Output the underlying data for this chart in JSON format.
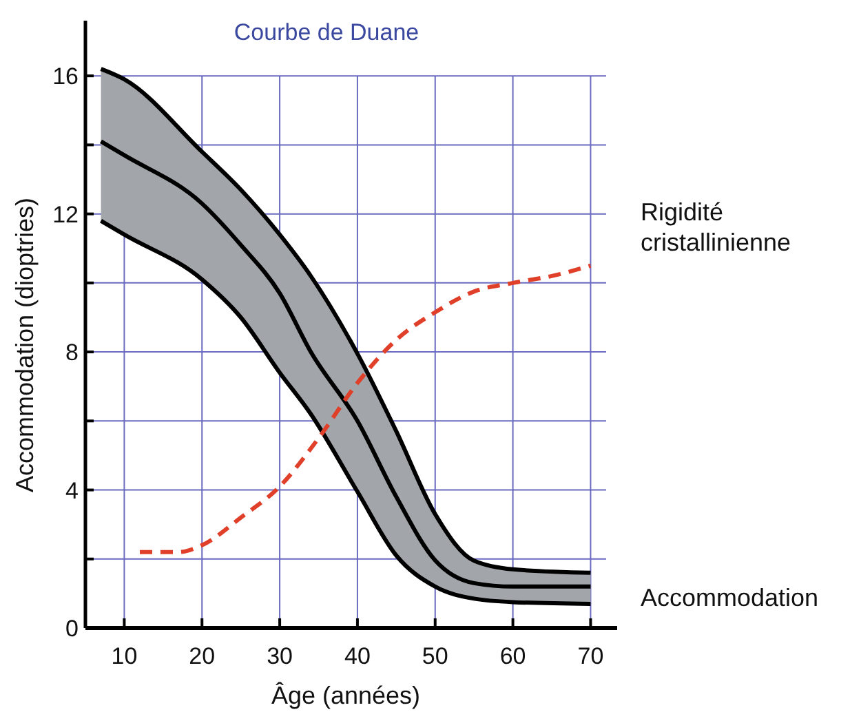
{
  "chart_data": {
    "type": "line",
    "title": "Courbe de Duane",
    "xlabel": "Âge (années)",
    "ylabel": "Accommodation (dioptries)",
    "xlim": [
      5,
      72
    ],
    "xticks": [
      10,
      20,
      30,
      40,
      50,
      60,
      70
    ],
    "ylim": [
      0,
      17.6
    ],
    "yticks": [
      0,
      {
        "value": 2,
        "label": null
      },
      4,
      {
        "value": 6,
        "label": null
      },
      8,
      {
        "value": 10,
        "label": null
      },
      12,
      {
        "value": 14,
        "label": null
      },
      16
    ],
    "grid": true,
    "legend": false,
    "line_style": "solid",
    "marker": "none",
    "series": [
      {
        "color": "#000000",
        "x": [
          7,
          10,
          20,
          25,
          30,
          34,
          40,
          45,
          50,
          55,
          60,
          70
        ],
        "values": [
          16.2,
          15.9,
          13.8,
          12.7,
          11.4,
          10.2,
          7.95,
          5.7,
          3.3,
          1.95,
          1.7,
          1.6
        ]
      },
      {
        "color": "#000000",
        "x": [
          7,
          10,
          20,
          25,
          30,
          34,
          40,
          45,
          50,
          55,
          60,
          70
        ],
        "values": [
          11.8,
          11.4,
          10.1,
          9.0,
          7.4,
          6.2,
          3.95,
          2.1,
          1.2,
          0.85,
          0.75,
          0.7
        ]
      },
      {
        "name": "Accommodation",
        "color": "#000000",
        "x": [
          7,
          10,
          20,
          25,
          30,
          34,
          40,
          45,
          50,
          55,
          60,
          70
        ],
        "values": [
          14.1,
          13.7,
          12.3,
          11.1,
          9.7,
          8.0,
          6.0,
          3.8,
          1.96,
          1.3,
          1.2,
          1.2
        ],
        "lower": [
          11.8,
          11.4,
          10.1,
          9.0,
          7.4,
          6.2,
          3.95,
          2.1,
          1.2,
          0.85,
          0.75,
          0.7
        ],
        "upper": [
          16.2,
          15.9,
          13.8,
          12.7,
          11.4,
          10.2,
          7.95,
          5.7,
          3.3,
          1.95,
          1.7,
          1.6
        ]
      },
      {
        "name": "Rigidité cristallinienne",
        "color": "#e0402a",
        "line_style": "dashed",
        "x": [
          12,
          17,
          20,
          25,
          30,
          35,
          40,
          45,
          50,
          55,
          60,
          65,
          70
        ],
        "values": [
          2.2,
          2.2,
          2.4,
          3.2,
          4.1,
          5.5,
          7.1,
          8.35,
          9.15,
          9.75,
          10.0,
          10.2,
          10.5
        ]
      }
    ]
  }
}
